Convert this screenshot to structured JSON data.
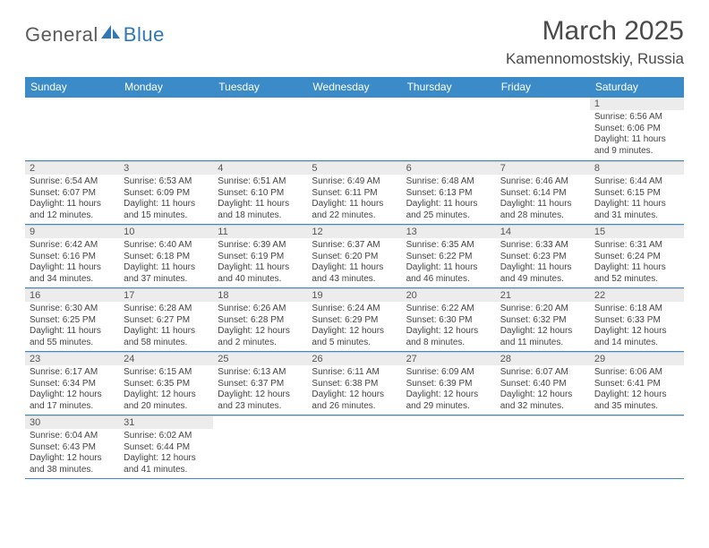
{
  "logo": {
    "text1": "General",
    "text2": "Blue"
  },
  "title": "March 2025",
  "location": "Kamennomostskiy, Russia",
  "header_bg": "#3b8bc8",
  "weekdays": [
    "Sunday",
    "Monday",
    "Tuesday",
    "Wednesday",
    "Thursday",
    "Friday",
    "Saturday"
  ],
  "weeks": [
    [
      null,
      null,
      null,
      null,
      null,
      null,
      {
        "d": "1",
        "sr": "6:56 AM",
        "ss": "6:06 PM",
        "dl": "11 hours and 9 minutes."
      }
    ],
    [
      {
        "d": "2",
        "sr": "6:54 AM",
        "ss": "6:07 PM",
        "dl": "11 hours and 12 minutes."
      },
      {
        "d": "3",
        "sr": "6:53 AM",
        "ss": "6:09 PM",
        "dl": "11 hours and 15 minutes."
      },
      {
        "d": "4",
        "sr": "6:51 AM",
        "ss": "6:10 PM",
        "dl": "11 hours and 18 minutes."
      },
      {
        "d": "5",
        "sr": "6:49 AM",
        "ss": "6:11 PM",
        "dl": "11 hours and 22 minutes."
      },
      {
        "d": "6",
        "sr": "6:48 AM",
        "ss": "6:13 PM",
        "dl": "11 hours and 25 minutes."
      },
      {
        "d": "7",
        "sr": "6:46 AM",
        "ss": "6:14 PM",
        "dl": "11 hours and 28 minutes."
      },
      {
        "d": "8",
        "sr": "6:44 AM",
        "ss": "6:15 PM",
        "dl": "11 hours and 31 minutes."
      }
    ],
    [
      {
        "d": "9",
        "sr": "6:42 AM",
        "ss": "6:16 PM",
        "dl": "11 hours and 34 minutes."
      },
      {
        "d": "10",
        "sr": "6:40 AM",
        "ss": "6:18 PM",
        "dl": "11 hours and 37 minutes."
      },
      {
        "d": "11",
        "sr": "6:39 AM",
        "ss": "6:19 PM",
        "dl": "11 hours and 40 minutes."
      },
      {
        "d": "12",
        "sr": "6:37 AM",
        "ss": "6:20 PM",
        "dl": "11 hours and 43 minutes."
      },
      {
        "d": "13",
        "sr": "6:35 AM",
        "ss": "6:22 PM",
        "dl": "11 hours and 46 minutes."
      },
      {
        "d": "14",
        "sr": "6:33 AM",
        "ss": "6:23 PM",
        "dl": "11 hours and 49 minutes."
      },
      {
        "d": "15",
        "sr": "6:31 AM",
        "ss": "6:24 PM",
        "dl": "11 hours and 52 minutes."
      }
    ],
    [
      {
        "d": "16",
        "sr": "6:30 AM",
        "ss": "6:25 PM",
        "dl": "11 hours and 55 minutes."
      },
      {
        "d": "17",
        "sr": "6:28 AM",
        "ss": "6:27 PM",
        "dl": "11 hours and 58 minutes."
      },
      {
        "d": "18",
        "sr": "6:26 AM",
        "ss": "6:28 PM",
        "dl": "12 hours and 2 minutes."
      },
      {
        "d": "19",
        "sr": "6:24 AM",
        "ss": "6:29 PM",
        "dl": "12 hours and 5 minutes."
      },
      {
        "d": "20",
        "sr": "6:22 AM",
        "ss": "6:30 PM",
        "dl": "12 hours and 8 minutes."
      },
      {
        "d": "21",
        "sr": "6:20 AM",
        "ss": "6:32 PM",
        "dl": "12 hours and 11 minutes."
      },
      {
        "d": "22",
        "sr": "6:18 AM",
        "ss": "6:33 PM",
        "dl": "12 hours and 14 minutes."
      }
    ],
    [
      {
        "d": "23",
        "sr": "6:17 AM",
        "ss": "6:34 PM",
        "dl": "12 hours and 17 minutes."
      },
      {
        "d": "24",
        "sr": "6:15 AM",
        "ss": "6:35 PM",
        "dl": "12 hours and 20 minutes."
      },
      {
        "d": "25",
        "sr": "6:13 AM",
        "ss": "6:37 PM",
        "dl": "12 hours and 23 minutes."
      },
      {
        "d": "26",
        "sr": "6:11 AM",
        "ss": "6:38 PM",
        "dl": "12 hours and 26 minutes."
      },
      {
        "d": "27",
        "sr": "6:09 AM",
        "ss": "6:39 PM",
        "dl": "12 hours and 29 minutes."
      },
      {
        "d": "28",
        "sr": "6:07 AM",
        "ss": "6:40 PM",
        "dl": "12 hours and 32 minutes."
      },
      {
        "d": "29",
        "sr": "6:06 AM",
        "ss": "6:41 PM",
        "dl": "12 hours and 35 minutes."
      }
    ],
    [
      {
        "d": "30",
        "sr": "6:04 AM",
        "ss": "6:43 PM",
        "dl": "12 hours and 38 minutes."
      },
      {
        "d": "31",
        "sr": "6:02 AM",
        "ss": "6:44 PM",
        "dl": "12 hours and 41 minutes."
      },
      null,
      null,
      null,
      null,
      null
    ]
  ],
  "labels": {
    "sunrise": "Sunrise:",
    "sunset": "Sunset:",
    "daylight": "Daylight:"
  }
}
